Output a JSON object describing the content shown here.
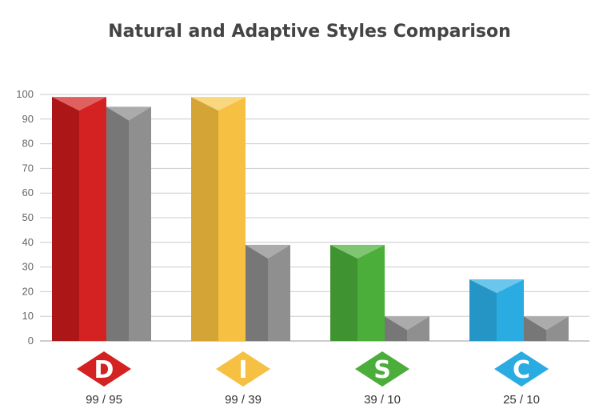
{
  "chart_data": {
    "type": "bar",
    "title": "Natural and Adaptive Styles Comparison",
    "categories": [
      "D",
      "I",
      "S",
      "C"
    ],
    "series": [
      {
        "values": [
          99,
          99,
          39,
          25
        ]
      },
      {
        "values": [
          95,
          39,
          10,
          10
        ]
      }
    ],
    "score_labels": [
      "99 / 95",
      "99 / 39",
      "39 / 10",
      "25 / 10"
    ],
    "yticks": [
      0,
      10,
      20,
      30,
      40,
      50,
      60,
      70,
      80,
      90,
      100
    ],
    "ylim": [
      0,
      100
    ],
    "grid": true,
    "colors": {
      "D": {
        "light": "#d42121",
        "dark": "#ac1616",
        "top": "#e05f5f"
      },
      "I": {
        "light": "#f6c142",
        "dark": "#d4a436",
        "top": "#f9d77f"
      },
      "S": {
        "light": "#4cae3a",
        "dark": "#3f9330",
        "top": "#80c572"
      },
      "C": {
        "light": "#2aace2",
        "dark": "#2495c4",
        "top": "#6ac6ec"
      },
      "gray": {
        "light": "#8f8f8f",
        "dark": "#777777",
        "top": "#ababab"
      }
    }
  }
}
